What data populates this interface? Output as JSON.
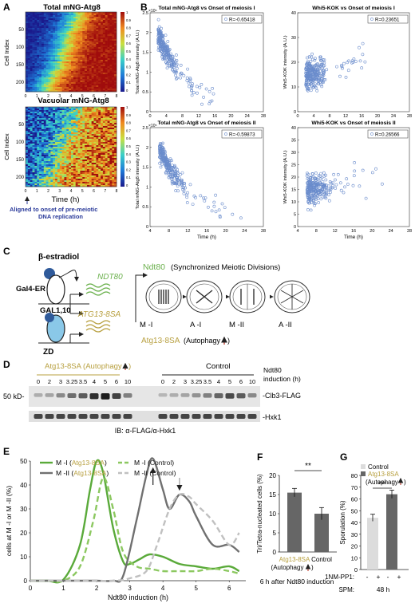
{
  "panel_letters": {
    "A": "A",
    "B": "B",
    "C": "C",
    "D": "D",
    "E": "E",
    "F": "F",
    "G": "G"
  },
  "panelA": {
    "top_title": "Total mNG-Atg8",
    "bottom_title": "Vacuolar mNG-Atg8",
    "ylabel": "Cell Index",
    "top_yticks": [
      "50",
      "100",
      "150",
      "200"
    ],
    "bottom_yticks": [
      "50",
      "100",
      "150",
      "200"
    ],
    "xticks": [
      "0",
      "1",
      "2",
      "3",
      "4",
      "5",
      "6",
      "7",
      "8"
    ],
    "xlabel": "Time (h)",
    "colorbar_top_ticks": [
      "1",
      "0.9",
      "0.8",
      "0.7",
      "0.6",
      "0.5",
      "0.4",
      "0.3",
      "0.2",
      "0.1",
      "0"
    ],
    "colorbar_bottom_ticks": [
      "1",
      "0.9",
      "0.8",
      "0.7",
      "0.6",
      "0.5",
      "0.4",
      "0.3",
      "0.2",
      "0.1",
      "0"
    ],
    "note_line1": "Aligned to onset of pre-meiotic",
    "note_line2": "DNA replication",
    "colors": {
      "low": "#2a3aa8",
      "high": "#b01515",
      "note": "#2a3a9a"
    }
  },
  "panelB": {
    "plots": [
      {
        "title": "Total mNG-Atg8 vs Onset of meiosis I",
        "ylabel": "Total mNG-Atg8 intensity (A.U.)",
        "xlabel": "",
        "exponent": "×10⁵",
        "r": "R=-0.65418",
        "yticks": [
          "0",
          "0.5",
          "1",
          "1.5",
          "2",
          "2.5"
        ],
        "xticks": [
          "0",
          "4",
          "8",
          "12",
          "16",
          "20",
          "24",
          "28"
        ]
      },
      {
        "title": "Whi5-KOK vs Onset of meiosis I",
        "ylabel": "Whi5-KOK intensity (A.U.)",
        "xlabel": "",
        "exponent": "",
        "r": "R=0.23651",
        "yticks": [
          "0",
          "10",
          "20",
          "30",
          "40"
        ],
        "xticks": [
          "0",
          "4",
          "8",
          "12",
          "16",
          "20",
          "24",
          "28"
        ]
      },
      {
        "title": "Total mNG-Atg8 vs Onset of meiosis II",
        "ylabel": "Total mNG-Atg8 intensity (A.U.)",
        "xlabel": "Time (h)",
        "exponent": "×10⁵",
        "r": "R=-0.59873",
        "yticks": [
          "0",
          "0.5",
          "1",
          "1.5",
          "2",
          "2.5"
        ],
        "xticks": [
          "4",
          "8",
          "12",
          "16",
          "20",
          "24",
          "28"
        ]
      },
      {
        "title": "Whi5-KOK vs Onset of meiosis II",
        "ylabel": "Whi5-KOK intensity (A.U.)",
        "xlabel": "Time (h)",
        "exponent": "",
        "r": "R=0.26566",
        "yticks": [
          "0",
          "5",
          "10",
          "15",
          "20",
          "25",
          "30",
          "35",
          "40"
        ],
        "xticks": [
          "4",
          "8",
          "12",
          "16",
          "20",
          "24",
          "28"
        ]
      }
    ],
    "point_color": "#6a8ccc"
  },
  "panelC": {
    "estradiol": "β-estradiol",
    "gal4": "Gal4-ER",
    "gal1": "GAL1,10",
    "zd": "ZD",
    "ndt80_gene": "NDT80",
    "atg13_gene": "ATG13-8SA",
    "ndt80_label": "Ndt80",
    "ndt80_rest": " (Synchronized Meiotic Divisions)",
    "stages": [
      "M -I",
      "A -I",
      "M -II",
      "A -II"
    ],
    "atg13_label": "Atg13-8SA",
    "atg13_rest": " (Autophagy ",
    "colors": {
      "green": "#6ab04c",
      "gold": "#b8a040",
      "blue": "#2f5a9a",
      "lightblue": "#8ac8e8",
      "red": "#c0392b"
    }
  },
  "panelD": {
    "group1": "Atg13-8SA (Autophagy",
    "group2": "Control",
    "induction": "Ndt80",
    "induction2": "induction (h)",
    "lanes1": [
      "0",
      "2",
      "3",
      "3.25",
      "3.5",
      "4",
      "5",
      "6",
      "10"
    ],
    "lanes2": [
      "0",
      "2",
      "3",
      "3.25",
      "3.5",
      "4",
      "5",
      "6",
      "10"
    ],
    "marker": "50 kD-",
    "band1": "-Clb3-FLAG",
    "band2": "-Hxk1",
    "ib": "IB: α-FLAG/α-Hxk1"
  },
  "chart_data": [
    {
      "type": "line",
      "panel": "E",
      "xlabel": "Ndt80 induction (h)",
      "ylabel": "cells at M -I or M -II (%)",
      "xlim": [
        0,
        6.5
      ],
      "ylim": [
        0,
        50
      ],
      "xticks": [
        "0",
        "1",
        "2",
        "3",
        "4",
        "5",
        "6"
      ],
      "yticks": [
        "0",
        "10",
        "20",
        "30",
        "40",
        "50"
      ],
      "series": [
        {
          "name": "M -I (Atg13-8SA)",
          "color": "#5aaa3a",
          "dash": false,
          "x": [
            0,
            0.5,
            1,
            1.5,
            1.8,
            2,
            2.2,
            2.5,
            2.8,
            3,
            3.3,
            3.6,
            4,
            4.5,
            5,
            5.5,
            6,
            6.3
          ],
          "y": [
            0,
            0,
            0.5,
            15,
            38,
            50,
            45,
            22,
            8,
            7,
            9,
            11,
            10,
            7,
            6,
            5,
            6,
            4
          ]
        },
        {
          "name": "M -I (Control)",
          "color": "#8cc860",
          "dash": true,
          "x": [
            0,
            0.5,
            1,
            1.5,
            1.9,
            2.2,
            2.5,
            2.8,
            3.2,
            3.6,
            4,
            4.5,
            5,
            5.5,
            6,
            6.3
          ],
          "y": [
            0,
            0,
            0,
            6,
            25,
            43,
            30,
            12,
            6,
            5,
            4,
            4,
            4,
            5,
            4,
            3
          ]
        },
        {
          "name": "M -II (Atg13-8SA)",
          "color": "#707070",
          "dash": false,
          "x": [
            0,
            1,
            2,
            2.5,
            2.8,
            3.2,
            3.5,
            3.7,
            4,
            4.2,
            4.5,
            4.8,
            5,
            5.5,
            6,
            6.3
          ],
          "y": [
            0,
            0,
            0,
            0,
            2,
            25,
            44,
            51,
            38,
            30,
            36,
            33,
            27,
            15,
            15,
            12
          ]
        },
        {
          "name": "M -II (Control)",
          "color": "#c0c0c0",
          "dash": true,
          "x": [
            0,
            1,
            2.5,
            3,
            3.5,
            3.8,
            4.2,
            4.5,
            4.8,
            5,
            5.5,
            6,
            6.3
          ],
          "y": [
            0,
            0,
            0,
            1,
            4,
            14,
            30,
            36,
            35,
            32,
            25,
            15,
            20
          ]
        }
      ]
    },
    {
      "type": "bar",
      "panel": "F",
      "ylabel": "Tri/Tetra-nucleated cells (%)",
      "categories": [
        "Atg13-8SA",
        "Control"
      ],
      "values": [
        15.5,
        10
      ],
      "errors": [
        1.1,
        1.6
      ],
      "ylim": [
        0,
        20
      ],
      "yticks": [
        "0",
        "5",
        "10",
        "15",
        "20"
      ],
      "subcaption": "(Autophagy",
      "footer": "6 h after Ndt80 induction",
      "significance": "**"
    },
    {
      "type": "bar",
      "panel": "G",
      "ylabel": "Sporulation (%)",
      "legend": [
        "Control",
        "Atg13-8SA",
        "(Autophagy"
      ],
      "categories": [
        "Control",
        "Atg13-8SA"
      ],
      "values": [
        44,
        64
      ],
      "errors": [
        3,
        3.5
      ],
      "ylim": [
        0,
        80
      ],
      "yticks": [
        "0",
        "10",
        "20",
        "30",
        "40",
        "50",
        "60",
        "70",
        "80"
      ],
      "treat_label": "1NM-PP1:",
      "treat_marks": [
        "-",
        "+",
        "-",
        "+"
      ],
      "spm_label": "SPM:",
      "spm_value": "48 h",
      "significance": "***"
    }
  ]
}
